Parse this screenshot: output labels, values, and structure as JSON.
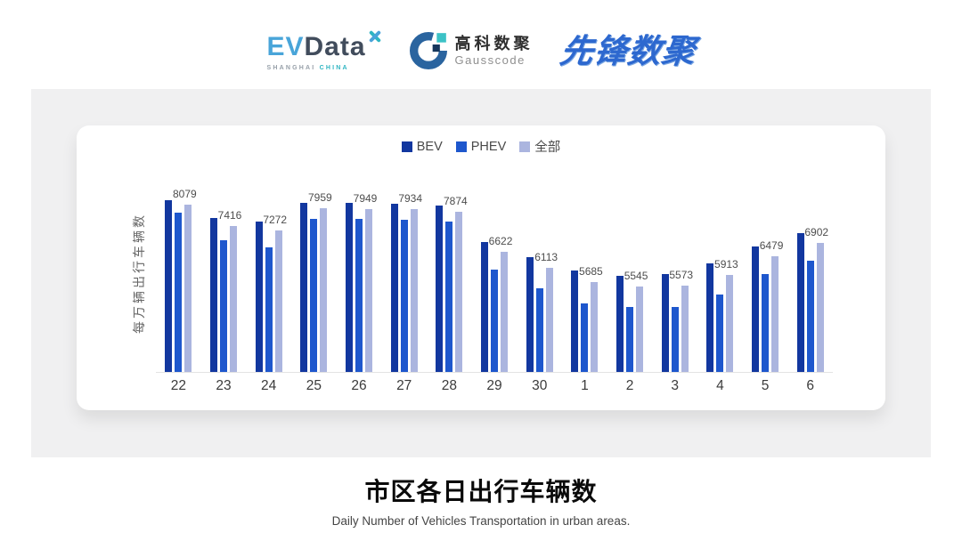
{
  "header": {
    "evdata_logo": {
      "ev": "EV",
      "data": "Data",
      "tagline_left": "SHANGHAI",
      "tagline_right": "CHINA"
    },
    "gausscode_logo": {
      "name_cn": "高科数聚",
      "name_en": "Gausscode"
    },
    "pioneer_logo": {
      "text": "先锋数聚"
    }
  },
  "chart_data": {
    "type": "bar",
    "title": "市区各日出行车辆数",
    "subtitle": "Daily Number of Vehicles Transportation in urban areas.",
    "ylabel": "每万辆出行车辆数",
    "xlabel": "",
    "categories": [
      "22",
      "23",
      "24",
      "25",
      "26",
      "27",
      "28",
      "29",
      "30",
      "1",
      "2",
      "3",
      "4",
      "5",
      "6"
    ],
    "series": [
      {
        "name": "BEV",
        "color": "#12379f",
        "values": [
          8215,
          7670,
          7560,
          8150,
          8125,
          8120,
          8050,
          6920,
          6465,
          6055,
          5890,
          5940,
          6255,
          6800,
          7210
        ]
      },
      {
        "name": "PHEV",
        "color": "#1e57cd",
        "values": [
          7835,
          6985,
          6765,
          7635,
          7630,
          7605,
          7560,
          6075,
          5500,
          5025,
          4900,
          4915,
          5300,
          5920,
          6350
        ]
      },
      {
        "name": "全部",
        "color": "#abb5df",
        "labeled": true,
        "values": [
          8079,
          7416,
          7272,
          7959,
          7949,
          7934,
          7874,
          6622,
          6113,
          5685,
          5545,
          5573,
          5913,
          6479,
          6902
        ]
      }
    ],
    "value_labels_series": "全部",
    "values_estimated_from_bars": [
      "BEV",
      "PHEV"
    ],
    "ylim": [
      2900,
      8550
    ],
    "legend_position": "top",
    "grid": false,
    "colors": {
      "value_label": "#4d4d4d",
      "tick_label": "#3b3b3b",
      "axis_line": "#e3e3e3"
    }
  },
  "theme": {
    "page_bg": "#ffffff",
    "panel_bg": "#f0f0f1",
    "card_bg": "#ffffff",
    "brand_teal": "#2fb5c2",
    "brand_blue": "#2d68cf"
  }
}
